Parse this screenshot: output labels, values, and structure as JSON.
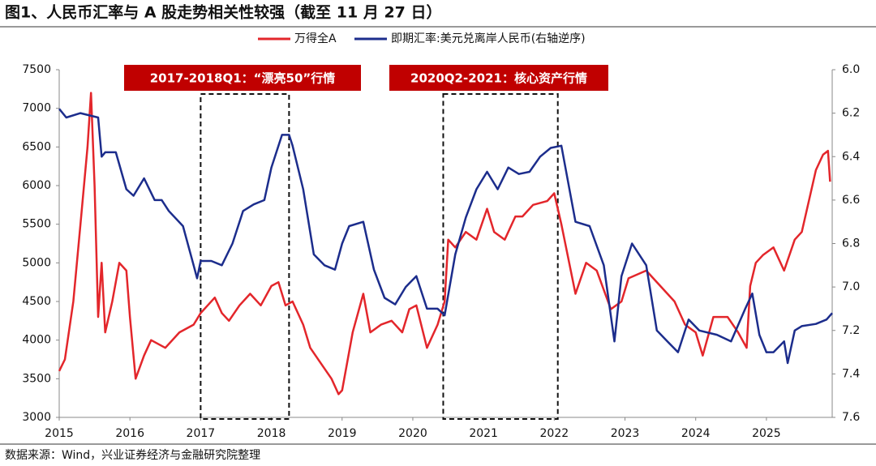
{
  "chart_data": {
    "type": "line",
    "title": "图1、人民币汇率与 A 股走势相关性较强（截至 11 月 27 日）",
    "source": "数据来源：Wind，兴业证券经济与金融研究院整理",
    "xlim": [
      2015,
      2025.93
    ],
    "xticks": [
      2015,
      2016,
      2017,
      2018,
      2019,
      2020,
      2021,
      2022,
      2023,
      2024,
      2025
    ],
    "ylim": [
      3000,
      7500
    ],
    "yticks": [
      3000,
      3500,
      4000,
      4500,
      5000,
      5500,
      6000,
      6500,
      7000,
      7500
    ],
    "y2lim": [
      6.0,
      7.6
    ],
    "y2_reversed": true,
    "y2ticks": [
      {
        "value": 6,
        "label": "6.0"
      },
      6.2,
      6.4,
      6.6,
      6.8,
      {
        "value": 7,
        "label": "7.0"
      },
      7.2,
      7.4,
      7.6
    ],
    "legend": "top",
    "annotations": [
      {
        "text": "2017-2018Q1：“漂亮50”行情",
        "range": [
          2017.0,
          2018.25
        ]
      },
      {
        "text": "2020Q2-2021：核心资产行情",
        "range": [
          2020.43,
          2022.05
        ]
      }
    ],
    "series": [
      {
        "name": "万得全A",
        "color": "#e3262b",
        "x": [
          2015.0,
          2015.08,
          2015.2,
          2015.3,
          2015.4,
          2015.45,
          2015.5,
          2015.55,
          2015.6,
          2015.65,
          2015.75,
          2015.85,
          2015.95,
          2016.0,
          2016.08,
          2016.2,
          2016.3,
          2016.5,
          2016.7,
          2016.9,
          2017.0,
          2017.2,
          2017.3,
          2017.4,
          2017.55,
          2017.7,
          2017.85,
          2018.0,
          2018.1,
          2018.2,
          2018.3,
          2018.45,
          2018.55,
          2018.7,
          2018.85,
          2018.95,
          2019.0,
          2019.15,
          2019.3,
          2019.4,
          2019.55,
          2019.7,
          2019.85,
          2019.95,
          2020.05,
          2020.2,
          2020.35,
          2020.45,
          2020.5,
          2020.6,
          2020.75,
          2020.9,
          2021.05,
          2021.15,
          2021.3,
          2021.45,
          2021.55,
          2021.7,
          2021.9,
          2022.0,
          2022.1,
          2022.3,
          2022.45,
          2022.6,
          2022.8,
          2022.95,
          2023.05,
          2023.3,
          2023.5,
          2023.7,
          2023.85,
          2024.0,
          2024.1,
          2024.25,
          2024.45,
          2024.6,
          2024.72,
          2024.77,
          2024.85,
          2024.95,
          2025.1,
          2025.25,
          2025.4,
          2025.5,
          2025.6,
          2025.7,
          2025.8,
          2025.87,
          2025.9
        ],
        "values": [
          3600,
          3750,
          4500,
          5500,
          6500,
          7200,
          6000,
          4300,
          5000,
          4100,
          4500,
          5000,
          4900,
          4300,
          3500,
          3800,
          4000,
          3900,
          4100,
          4200,
          4350,
          4550,
          4350,
          4250,
          4450,
          4600,
          4450,
          4700,
          4750,
          4450,
          4500,
          4200,
          3900,
          3700,
          3500,
          3300,
          3350,
          4100,
          4600,
          4100,
          4200,
          4250,
          4100,
          4400,
          4450,
          3900,
          4200,
          4500,
          5300,
          5200,
          5400,
          5300,
          5700,
          5400,
          5300,
          5600,
          5600,
          5750,
          5800,
          5900,
          5500,
          4600,
          5000,
          4900,
          4400,
          4500,
          4800,
          4900,
          4700,
          4500,
          4200,
          4100,
          3800,
          4300,
          4300,
          4100,
          3900,
          4700,
          5000,
          5100,
          5200,
          4900,
          5300,
          5400,
          5800,
          6200,
          6400,
          6450,
          6050
        ]
      },
      {
        "name": "即期汇率:美元兑离岸人民币(右轴逆序)",
        "color": "#1c2d8c",
        "axis": "y2",
        "x": [
          2015.0,
          2015.1,
          2015.3,
          2015.55,
          2015.6,
          2015.65,
          2015.8,
          2015.95,
          2016.05,
          2016.2,
          2016.35,
          2016.45,
          2016.55,
          2016.75,
          2016.9,
          2016.95,
          2017.0,
          2017.15,
          2017.3,
          2017.45,
          2017.6,
          2017.75,
          2017.9,
          2018.0,
          2018.15,
          2018.25,
          2018.3,
          2018.45,
          2018.6,
          2018.75,
          2018.9,
          2019.0,
          2019.1,
          2019.3,
          2019.45,
          2019.6,
          2019.75,
          2019.9,
          2020.05,
          2020.2,
          2020.35,
          2020.45,
          2020.6,
          2020.75,
          2020.9,
          2021.05,
          2021.2,
          2021.35,
          2021.5,
          2021.65,
          2021.8,
          2021.95,
          2022.1,
          2022.3,
          2022.5,
          2022.7,
          2022.85,
          2022.95,
          2023.1,
          2023.3,
          2023.45,
          2023.6,
          2023.75,
          2023.9,
          2024.05,
          2024.3,
          2024.5,
          2024.7,
          2024.8,
          2024.9,
          2025.0,
          2025.1,
          2025.25,
          2025.3,
          2025.4,
          2025.5,
          2025.7,
          2025.85,
          2025.93
        ],
        "values": [
          6.18,
          6.22,
          6.2,
          6.22,
          6.4,
          6.38,
          6.38,
          6.55,
          6.58,
          6.5,
          6.6,
          6.6,
          6.65,
          6.72,
          6.9,
          6.96,
          6.88,
          6.88,
          6.9,
          6.8,
          6.65,
          6.62,
          6.6,
          6.45,
          6.3,
          6.3,
          6.35,
          6.55,
          6.85,
          6.9,
          6.92,
          6.8,
          6.72,
          6.7,
          6.92,
          7.05,
          7.08,
          7.0,
          6.95,
          7.1,
          7.1,
          7.13,
          6.85,
          6.68,
          6.55,
          6.47,
          6.55,
          6.45,
          6.48,
          6.47,
          6.4,
          6.36,
          6.35,
          6.7,
          6.72,
          6.9,
          7.25,
          6.95,
          6.8,
          6.9,
          7.2,
          7.25,
          7.3,
          7.15,
          7.2,
          7.22,
          7.25,
          7.1,
          7.03,
          7.22,
          7.3,
          7.3,
          7.25,
          7.35,
          7.2,
          7.18,
          7.17,
          7.15,
          7.12
        ]
      }
    ]
  }
}
